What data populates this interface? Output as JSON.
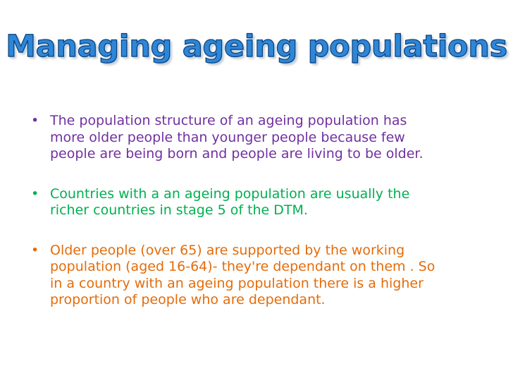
{
  "slide": {
    "title": "Managing ageing populations",
    "bullets": [
      {
        "text": "The population structure of an ageing population has more older people than younger people because few people are being born and people are living to be older.",
        "color": "#7030a0"
      },
      {
        "text": "Countries with a an ageing population are usually the richer countries in stage 5 of the DTM.",
        "color": "#00b050"
      },
      {
        "text": "Older people (over 65) are supported by the working population (aged 16-64)- they're dependant on them . So in a country with an ageing population there is a higher proportion of people who are dependant.",
        "color": "#e46c0a"
      }
    ],
    "bullet_glyph": "•",
    "title_color": "#2e86d6",
    "title_outline_color": "#0b3f7a"
  }
}
